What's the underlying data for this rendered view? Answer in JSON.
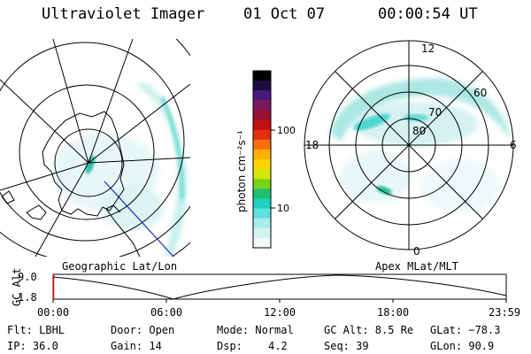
{
  "header": {
    "instrument": "Ultraviolet Imager",
    "date": "01 Oct 07",
    "time": "00:00:54 UT"
  },
  "panels": {
    "left_label": "Geographic Lat/Lon",
    "right_label": "Apex MLat/MLT"
  },
  "colorbar": {
    "unit_label": "photon cm⁻²s⁻¹",
    "ticks": [
      "100",
      "10"
    ],
    "colors": [
      "#000000",
      "#1a0e45",
      "#4a1a7a",
      "#7a1a5c",
      "#9a1035",
      "#c01010",
      "#e33010",
      "#f5700a",
      "#ffb000",
      "#ffd200",
      "#d6e60a",
      "#7ad11a",
      "#20c070",
      "#20d0c0",
      "#60e0e0",
      "#a8ecec",
      "#d5f3f3",
      "#f0f8f8"
    ]
  },
  "polar_labels": {
    "mlt_top": "12",
    "mlt_left": "18",
    "mlt_right": "6",
    "mlt_bottom": "0",
    "lat_60": "60",
    "lat_70": "70",
    "lat_80": "80"
  },
  "altitude_plot": {
    "ylabel": "GC Alt",
    "yticks": [
      "9.0",
      "1.8"
    ],
    "xticks": [
      "00:00",
      "06:00",
      "12:00",
      "18:00",
      "23:59"
    ],
    "line_color": "#000000",
    "cursor_color": "#e00000"
  },
  "status": {
    "row1": {
      "flt": "Flt: LBHL",
      "door": "Door: Open",
      "mode": "Mode: Normal",
      "gcalt": "GC Alt: 8.5 Re",
      "glat": "GLat: −78.3"
    },
    "row2": {
      "ip": "IP: 36.0",
      "gain": "Gain: 14",
      "dsp_label": "Dsp:",
      "dsp_value": "4.2",
      "seq": "Seq: 39",
      "glon": "GLon:  90.9"
    }
  }
}
